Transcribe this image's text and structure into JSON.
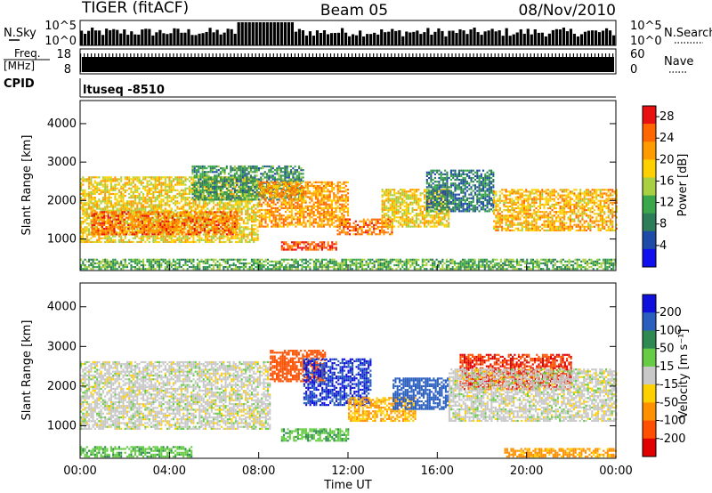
{
  "header": {
    "radar": "TIGER (fitACF)",
    "beam": "Beam 05",
    "date": "08/Nov/2010"
  },
  "strips": {
    "nsky_label": "N.Sky",
    "nsky_ticks": [
      "10^5",
      "10^0"
    ],
    "nsearch_label": "N.Search",
    "nsearch_ticks": [
      "10^5",
      "10^0"
    ],
    "freq_label_1": "Freq.",
    "freq_label_2": "[MHz]",
    "freq_ticks": [
      "18",
      "8"
    ],
    "nave_label": "Nave",
    "nave_ticks": [
      "60",
      "0"
    ],
    "cpid_label": "CPID",
    "cpid_value": "ltuseq -8510"
  },
  "chart_data": [
    {
      "type": "heatmap",
      "parameter": "Power",
      "xlabel": "",
      "ylabel": "Slant Range [km]",
      "xlim": [
        "00:00",
        "24:00"
      ],
      "ylim": [
        180,
        4600
      ],
      "yticks": [
        1000,
        2000,
        3000,
        4000
      ],
      "colorbar": {
        "label": "Power [dB]",
        "ticks": [
          4,
          8,
          12,
          16,
          20,
          24,
          28
        ],
        "range": [
          0,
          30
        ],
        "colors": [
          "#1010ee",
          "#1e4aa8",
          "#2e7d5a",
          "#3aa84a",
          "#a8d040",
          "#ffd000",
          "#ff9a00",
          "#ff6600",
          "#e81010"
        ]
      },
      "regions": [
        {
          "t0": 0.0,
          "t1": 8.0,
          "r0": 900,
          "r1": 2600,
          "value": 18
        },
        {
          "t0": 0.5,
          "t1": 7.0,
          "r0": 1100,
          "r1": 1700,
          "value": 24
        },
        {
          "t0": 5.0,
          "t1": 10.0,
          "r0": 2000,
          "r1": 2900,
          "value": 10
        },
        {
          "t0": 8.0,
          "t1": 12.0,
          "r0": 1300,
          "r1": 2500,
          "value": 22
        },
        {
          "t0": 9.0,
          "t1": 11.5,
          "r0": 700,
          "r1": 900,
          "value": 26
        },
        {
          "t0": 11.5,
          "t1": 14.0,
          "r0": 1100,
          "r1": 1500,
          "value": 24
        },
        {
          "t0": 13.5,
          "t1": 16.5,
          "r0": 1300,
          "r1": 2300,
          "value": 18
        },
        {
          "t0": 15.5,
          "t1": 18.5,
          "r0": 1700,
          "r1": 2800,
          "value": 8
        },
        {
          "t0": 18.5,
          "t1": 24.0,
          "r0": 1200,
          "r1": 2300,
          "value": 20
        },
        {
          "t0": 0.0,
          "t1": 24.0,
          "r0": 200,
          "r1": 450,
          "value": 12
        }
      ]
    },
    {
      "type": "heatmap",
      "parameter": "Velocity",
      "xlabel": "Time UT",
      "ylabel": "Slant Range [km]",
      "xlim": [
        "00:00",
        "24:00"
      ],
      "xticks": [
        "00:00",
        "04:00",
        "08:00",
        "12:00",
        "16:00",
        "20:00",
        "00:00"
      ],
      "ylim": [
        180,
        4600
      ],
      "yticks": [
        1000,
        2000,
        3000,
        4000
      ],
      "colorbar": {
        "label": "Velocity [m s⁻¹]",
        "ticks": [
          200,
          100,
          50,
          15,
          -15,
          -50,
          -100,
          -200
        ],
        "colors": [
          "#1010dd",
          "#2a5fc0",
          "#2e8a50",
          "#66cc44",
          "#c8c8c8",
          "#ffd000",
          "#ff9000",
          "#ff5000",
          "#e00000"
        ]
      },
      "regions": [
        {
          "t0": 0.0,
          "t1": 8.5,
          "r0": 900,
          "r1": 2600,
          "value": 0
        },
        {
          "t0": 8.5,
          "t1": 11.0,
          "r0": 2100,
          "r1": 2900,
          "value": -150
        },
        {
          "t0": 10.0,
          "t1": 13.0,
          "r0": 1500,
          "r1": 2700,
          "value": 200
        },
        {
          "t0": 12.0,
          "t1": 15.0,
          "r0": 1100,
          "r1": 1700,
          "value": -50
        },
        {
          "t0": 14.0,
          "t1": 16.5,
          "r0": 1400,
          "r1": 2200,
          "value": 150
        },
        {
          "t0": 17.0,
          "t1": 22.0,
          "r0": 1900,
          "r1": 2800,
          "value": -200
        },
        {
          "t0": 16.5,
          "t1": 24.0,
          "r0": 1100,
          "r1": 2400,
          "value": 0
        },
        {
          "t0": 9.0,
          "t1": 12.0,
          "r0": 600,
          "r1": 900,
          "value": 40
        },
        {
          "t0": 0.0,
          "t1": 5.0,
          "r0": 200,
          "r1": 450,
          "value": 40
        },
        {
          "t0": 19.0,
          "t1": 24.0,
          "r0": 200,
          "r1": 400,
          "value": -60
        }
      ]
    }
  ]
}
